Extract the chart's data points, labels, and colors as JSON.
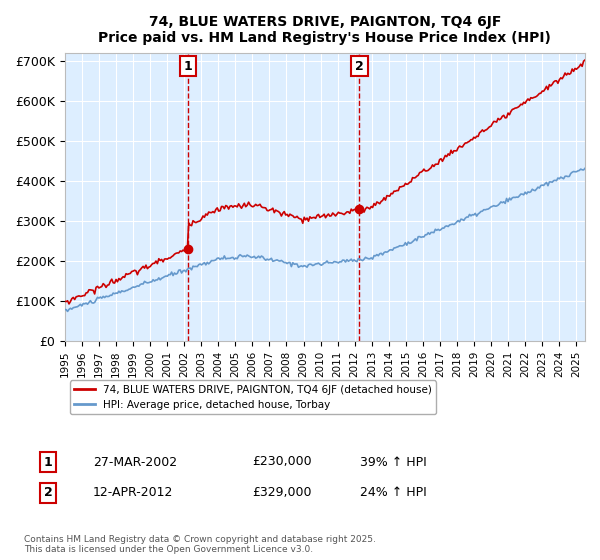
{
  "title": "74, BLUE WATERS DRIVE, PAIGNTON, TQ4 6JF",
  "subtitle": "Price paid vs. HM Land Registry's House Price Index (HPI)",
  "ylabel_ticks": [
    "£0",
    "£100K",
    "£200K",
    "£300K",
    "£400K",
    "£500K",
    "£600K",
    "£700K"
  ],
  "ytick_values": [
    0,
    100000,
    200000,
    300000,
    400000,
    500000,
    600000,
    700000
  ],
  "ylim": [
    0,
    720000
  ],
  "xlim_start": 1995.0,
  "xlim_end": 2025.5,
  "sale1": {
    "date": 2002.23,
    "price": 230000,
    "label": "1",
    "text": "27-MAR-2002",
    "amount": "£230,000",
    "pct": "39% ↑ HPI"
  },
  "sale2": {
    "date": 2012.28,
    "price": 329000,
    "label": "2",
    "text": "12-APR-2012",
    "amount": "£329,000",
    "pct": "24% ↑ HPI"
  },
  "legend_line1": "74, BLUE WATERS DRIVE, PAIGNTON, TQ4 6JF (detached house)",
  "legend_line2": "HPI: Average price, detached house, Torbay",
  "footnote": "Contains HM Land Registry data © Crown copyright and database right 2025.\nThis data is licensed under the Open Government Licence v3.0.",
  "line_color_red": "#cc0000",
  "line_color_blue": "#6699cc",
  "background_plot": "#ddeeff",
  "grid_color": "#ffffff",
  "vline_color": "#cc0000",
  "box_color": "#cc0000"
}
